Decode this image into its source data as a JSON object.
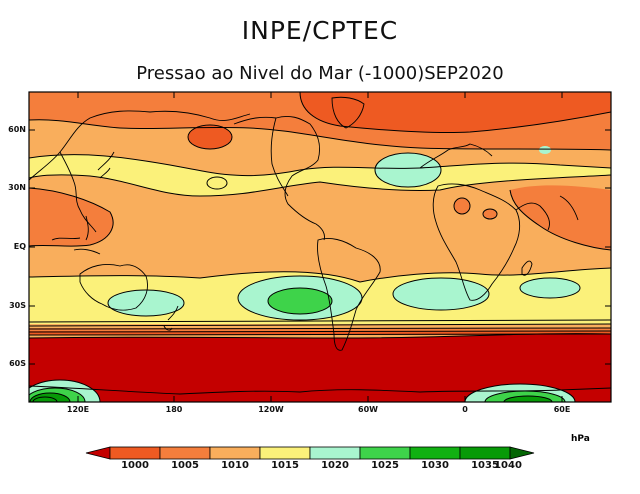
{
  "header": {
    "title": "INPE/CPTEC",
    "subtitle": "Pressao ao Nivel do Mar (-1000)SEP2020"
  },
  "map": {
    "lat_labels": [
      "60N",
      "30N",
      "EQ",
      "30S",
      "60S"
    ],
    "lon_labels": [
      "120E",
      "180",
      "120W",
      "60W",
      "0",
      "60E"
    ]
  },
  "colorbar": {
    "unit": "hPa",
    "levels": [
      "1000",
      "1005",
      "1010",
      "1015",
      "1020",
      "1025",
      "1030",
      "1035",
      "1040"
    ],
    "colors": [
      "#c40000",
      "#ee5a22",
      "#f47e3c",
      "#f9ae5c",
      "#fbf17a",
      "#a9f5cf",
      "#3ed34a",
      "#11b112",
      "#079a07",
      "#046604"
    ]
  }
}
